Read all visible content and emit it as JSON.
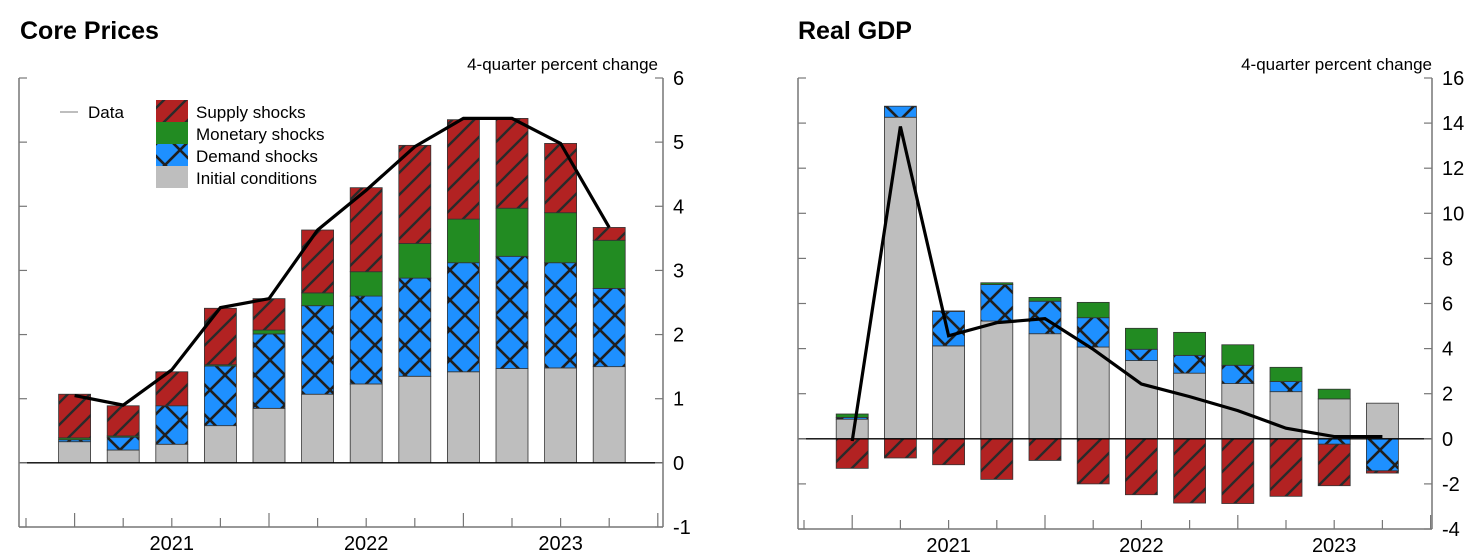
{
  "chart_data": [
    {
      "type": "bar",
      "stacked": true,
      "title": "Core Prices",
      "unit_label": "4-quarter percent change",
      "xlabel": "",
      "ylabel": "",
      "ylim": [
        -1,
        6
      ],
      "yticks": [
        -1,
        0,
        1,
        2,
        3,
        4,
        5,
        6
      ],
      "ytick_labels": [
        "-1",
        "0",
        "1",
        "2",
        "3",
        "4",
        "5",
        "6"
      ],
      "x_axis_start": "2020Q1",
      "categories": [
        "2020Q2",
        "2020Q3",
        "2020Q4",
        "2021Q1",
        "2021Q2",
        "2021Q3",
        "2021Q4",
        "2022Q1",
        "2022Q2",
        "2022Q3",
        "2022Q4",
        "2023Q1"
      ],
      "xtick_year_labels": [
        {
          "label": "2021",
          "year_center_index": 4
        },
        {
          "label": "2022",
          "year_center_index": 8
        },
        {
          "label": "2023",
          "year_center_index": 12
        }
      ],
      "series": [
        {
          "name": "Initial conditions",
          "color": "#BEBEBE",
          "pattern": "none",
          "values": [
            0.33,
            0.2,
            0.29,
            0.58,
            0.85,
            1.07,
            1.23,
            1.35,
            1.42,
            1.47,
            1.48,
            1.5
          ]
        },
        {
          "name": "Demand shocks",
          "color": "#1E90FF",
          "pattern": "crosshatch",
          "values": [
            0.03,
            0.2,
            0.6,
            0.93,
            1.16,
            1.38,
            1.37,
            1.53,
            1.7,
            1.75,
            1.64,
            1.22
          ]
        },
        {
          "name": "Monetary shocks",
          "color": "#228B22",
          "pattern": "none",
          "values": [
            0.03,
            0.02,
            0.0,
            0.02,
            0.06,
            0.2,
            0.38,
            0.54,
            0.68,
            0.75,
            0.78,
            0.75
          ]
        },
        {
          "name": "Supply shocks",
          "color": "#B22222",
          "pattern": "diagonal",
          "values": [
            0.68,
            0.47,
            0.53,
            0.88,
            0.49,
            0.98,
            1.31,
            1.53,
            1.55,
            1.4,
            1.08,
            0.2
          ]
        }
      ],
      "line": {
        "name": "Data",
        "color": "#000000",
        "values": [
          1.05,
          0.9,
          1.45,
          2.42,
          2.56,
          3.63,
          4.25,
          4.93,
          5.37,
          5.37,
          4.98,
          3.67
        ]
      },
      "legend": {
        "placement": "top-left",
        "line_entry": "Data",
        "entries": [
          "Supply shocks",
          "Monetary shocks",
          "Demand shocks",
          "Initial conditions"
        ]
      },
      "y_axis_side": "right",
      "grid": false
    },
    {
      "type": "bar",
      "stacked": true,
      "title": "Real GDP",
      "unit_label": "4-quarter percent change",
      "xlabel": "",
      "ylabel": "",
      "ylim": [
        -4,
        16
      ],
      "yticks": [
        -4,
        -2,
        0,
        2,
        4,
        6,
        8,
        10,
        12,
        14,
        16
      ],
      "ytick_labels": [
        "-4",
        "-2",
        "0",
        "2",
        "4",
        "6",
        "8",
        "10",
        "12",
        "14",
        "16"
      ],
      "x_axis_start": "2020Q1",
      "categories": [
        "2020Q2",
        "2020Q3",
        "2020Q4",
        "2021Q1",
        "2021Q2",
        "2021Q3",
        "2021Q4",
        "2022Q1",
        "2022Q2",
        "2022Q3",
        "2022Q4",
        "2023Q1"
      ],
      "xtick_year_labels": [
        {
          "label": "2021",
          "year_center_index": 4
        },
        {
          "label": "2022",
          "year_center_index": 8
        },
        {
          "label": "2023",
          "year_center_index": 12
        }
      ],
      "series": [
        {
          "name": "Initial conditions",
          "color": "#BEBEBE",
          "pattern": "none",
          "values": [
            0.87,
            14.26,
            4.12,
            5.22,
            4.66,
            4.07,
            3.47,
            2.91,
            2.45,
            2.09,
            1.77,
            1.58
          ]
        },
        {
          "name": "Demand shocks",
          "color": "#1E90FF",
          "pattern": "crosshatch",
          "values": [
            0.08,
            0.49,
            1.53,
            1.62,
            1.44,
            1.3,
            0.5,
            0.79,
            0.81,
            0.45,
            -0.24,
            -1.42
          ]
        },
        {
          "name": "Monetary shocks",
          "color": "#228B22",
          "pattern": "none",
          "values": [
            0.15,
            0.0,
            0.02,
            0.08,
            0.17,
            0.68,
            0.93,
            1.02,
            0.91,
            0.63,
            0.43,
            0.0
          ]
        },
        {
          "name": "Supply shocks",
          "color": "#B22222",
          "pattern": "diagonal",
          "values": [
            -1.31,
            -0.85,
            -1.15,
            -1.8,
            -0.96,
            -2.0,
            -2.48,
            -2.85,
            -2.87,
            -2.55,
            -1.84,
            -0.1
          ]
        }
      ],
      "line": {
        "name": "Data",
        "color": "#000000",
        "values": [
          -0.1,
          13.85,
          4.57,
          5.15,
          5.33,
          3.97,
          2.43,
          1.87,
          1.25,
          0.47,
          0.1,
          0.1
        ]
      },
      "y_axis_side": "right",
      "grid": false
    }
  ]
}
